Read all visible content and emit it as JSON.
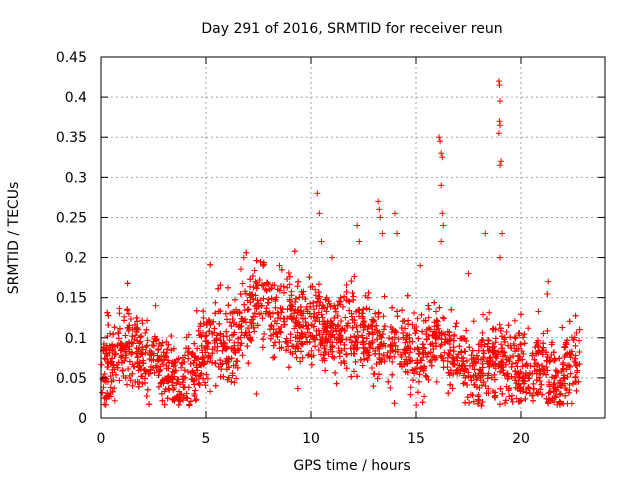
{
  "chart_data": {
    "type": "scatter",
    "title": "Day 291 of 2016, SRMTID for receiver reun",
    "xlabel": "GPS time / hours",
    "ylabel": "SRMTID / TECUs",
    "xlim": [
      0,
      24
    ],
    "ylim": [
      0,
      0.45
    ],
    "xticks": [
      0,
      5,
      10,
      15,
      20
    ],
    "yticks": [
      0,
      0.05,
      0.1,
      0.15,
      0.2,
      0.25,
      0.3,
      0.35,
      0.4,
      0.45
    ],
    "xtick_labels": [
      "0",
      "5",
      "10",
      "15",
      "20"
    ],
    "ytick_labels": [
      "0",
      "0.05",
      "0.1",
      "0.15",
      "0.2",
      "0.25",
      "0.3",
      "0.35",
      "0.4",
      "0.45"
    ],
    "grid": true,
    "marker": "+",
    "color": "#ff0000",
    "trend": [
      [
        0.0,
        0.05
      ],
      [
        0.5,
        0.07
      ],
      [
        1.0,
        0.085
      ],
      [
        1.5,
        0.09
      ],
      [
        2.0,
        0.08
      ],
      [
        2.5,
        0.075
      ],
      [
        3.0,
        0.065
      ],
      [
        3.5,
        0.055
      ],
      [
        4.0,
        0.05
      ],
      [
        4.5,
        0.06
      ],
      [
        5.0,
        0.09
      ],
      [
        5.5,
        0.095
      ],
      [
        6.0,
        0.09
      ],
      [
        6.5,
        0.1
      ],
      [
        7.0,
        0.13
      ],
      [
        7.5,
        0.14
      ],
      [
        8.0,
        0.135
      ],
      [
        8.5,
        0.125
      ],
      [
        9.0,
        0.12
      ],
      [
        9.5,
        0.115
      ],
      [
        10.0,
        0.12
      ],
      [
        10.5,
        0.115
      ],
      [
        11.0,
        0.1
      ],
      [
        11.5,
        0.105
      ],
      [
        12.0,
        0.11
      ],
      [
        12.5,
        0.1
      ],
      [
        13.0,
        0.09
      ],
      [
        13.5,
        0.085
      ],
      [
        14.0,
        0.095
      ],
      [
        14.5,
        0.085
      ],
      [
        15.0,
        0.08
      ],
      [
        15.5,
        0.085
      ],
      [
        16.0,
        0.1
      ],
      [
        16.5,
        0.08
      ],
      [
        17.0,
        0.07
      ],
      [
        17.5,
        0.065
      ],
      [
        18.0,
        0.06
      ],
      [
        18.5,
        0.065
      ],
      [
        19.0,
        0.07
      ],
      [
        19.5,
        0.065
      ],
      [
        20.0,
        0.06
      ],
      [
        20.5,
        0.06
      ],
      [
        21.0,
        0.07
      ],
      [
        21.5,
        0.04
      ],
      [
        22.0,
        0.05
      ],
      [
        22.5,
        0.07
      ],
      [
        22.8,
        0.07
      ]
    ],
    "spread": 0.025,
    "points_per_hour": 150,
    "outliers": [
      [
        2.6,
        0.14
      ],
      [
        7.4,
        0.03
      ],
      [
        10.3,
        0.28
      ],
      [
        10.4,
        0.255
      ],
      [
        10.5,
        0.22
      ],
      [
        12.2,
        0.24
      ],
      [
        12.3,
        0.22
      ],
      [
        13.2,
        0.27
      ],
      [
        13.25,
        0.26
      ],
      [
        13.3,
        0.25
      ],
      [
        13.4,
        0.23
      ],
      [
        14.0,
        0.255
      ],
      [
        14.1,
        0.23
      ],
      [
        16.1,
        0.35
      ],
      [
        16.15,
        0.345
      ],
      [
        16.2,
        0.33
      ],
      [
        16.25,
        0.325
      ],
      [
        16.2,
        0.29
      ],
      [
        16.25,
        0.255
      ],
      [
        16.3,
        0.24
      ],
      [
        16.2,
        0.22
      ],
      [
        18.3,
        0.23
      ],
      [
        18.95,
        0.42
      ],
      [
        18.98,
        0.415
      ],
      [
        19.0,
        0.395
      ],
      [
        18.97,
        0.37
      ],
      [
        19.0,
        0.365
      ],
      [
        18.95,
        0.355
      ],
      [
        19.05,
        0.32
      ],
      [
        19.0,
        0.315
      ],
      [
        19.1,
        0.23
      ],
      [
        19.0,
        0.2
      ],
      [
        21.3,
        0.17
      ],
      [
        17.5,
        0.18
      ],
      [
        15.2,
        0.19
      ],
      [
        11.0,
        0.2
      ],
      [
        8.5,
        0.19
      ],
      [
        6.8,
        0.2
      ]
    ]
  }
}
